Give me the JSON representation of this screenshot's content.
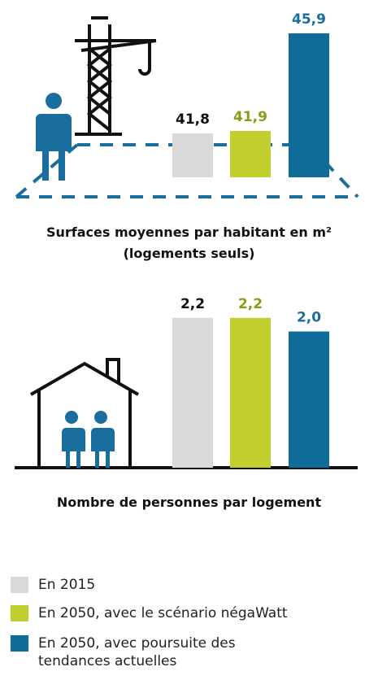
{
  "chart_data": [
    {
      "type": "bar",
      "title": "Surfaces moyennes par habitant en m²\n(logements seuls)",
      "categories": [
        null
      ],
      "ylim": [
        40,
        46
      ],
      "series": [
        {
          "name": "En 2015",
          "color": "#d9d9d9",
          "label_color": "#111111",
          "values": [
            41.8
          ],
          "value_labels": [
            "41,8"
          ]
        },
        {
          "name": "En 2050, avec le scénario négaWatt",
          "color": "#c3cf2e",
          "label_color": "#8e9a14",
          "values": [
            41.9
          ],
          "value_labels": [
            "41,9"
          ]
        },
        {
          "name": "En 2050, avec poursuite des\ntendances actuelles",
          "color": "#0f6b98",
          "label_color": "#1d6d9b",
          "values": [
            45.9
          ],
          "value_labels": [
            "45,9"
          ]
        }
      ]
    },
    {
      "type": "bar",
      "title": "Nombre de personnes par logement",
      "categories": [
        null
      ],
      "ylim": [
        0,
        2.4
      ],
      "series": [
        {
          "color": "#d9d9d9",
          "label_color": "#111111",
          "values": [
            2.2
          ],
          "value_labels": [
            "2,2"
          ]
        },
        {
          "color": "#c3cf2e",
          "label_color": "#8e9a14",
          "values": [
            2.2
          ],
          "value_labels": [
            "2,2"
          ]
        },
        {
          "color": "#0f6b98",
          "label_color": "#1d6d9b",
          "values": [
            2.0
          ],
          "value_labels": [
            "2,0"
          ]
        }
      ]
    }
  ]
}
